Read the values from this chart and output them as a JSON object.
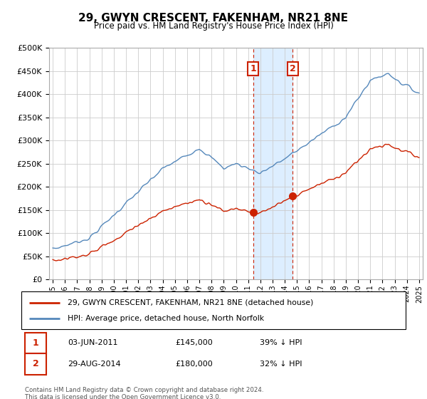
{
  "title": "29, GWYN CRESCENT, FAKENHAM, NR21 8NE",
  "subtitle": "Price paid vs. HM Land Registry's House Price Index (HPI)",
  "legend_line1": "29, GWYN CRESCENT, FAKENHAM, NR21 8NE (detached house)",
  "legend_line2": "HPI: Average price, detached house, North Norfolk",
  "annotation1_date": "03-JUN-2011",
  "annotation1_price": "£145,000",
  "annotation1_pct": "39% ↓ HPI",
  "annotation2_date": "29-AUG-2014",
  "annotation2_price": "£180,000",
  "annotation2_pct": "32% ↓ HPI",
  "footer": "Contains HM Land Registry data © Crown copyright and database right 2024.\nThis data is licensed under the Open Government Licence v3.0.",
  "hpi_color": "#5588bb",
  "price_color": "#cc2200",
  "annotation_color": "#cc2200",
  "vline_color": "#cc2200",
  "shade_color": "#ddeeff",
  "background_color": "#ffffff",
  "grid_color": "#cccccc",
  "ylim": [
    0,
    500000
  ],
  "yticks": [
    0,
    50000,
    100000,
    150000,
    200000,
    250000,
    300000,
    350000,
    400000,
    450000,
    500000
  ],
  "xstart_year": 1995,
  "xend_year": 2025,
  "sale1_year": 2011.42,
  "sale1_price": 145000,
  "sale2_year": 2014.66,
  "sale2_price": 180000
}
